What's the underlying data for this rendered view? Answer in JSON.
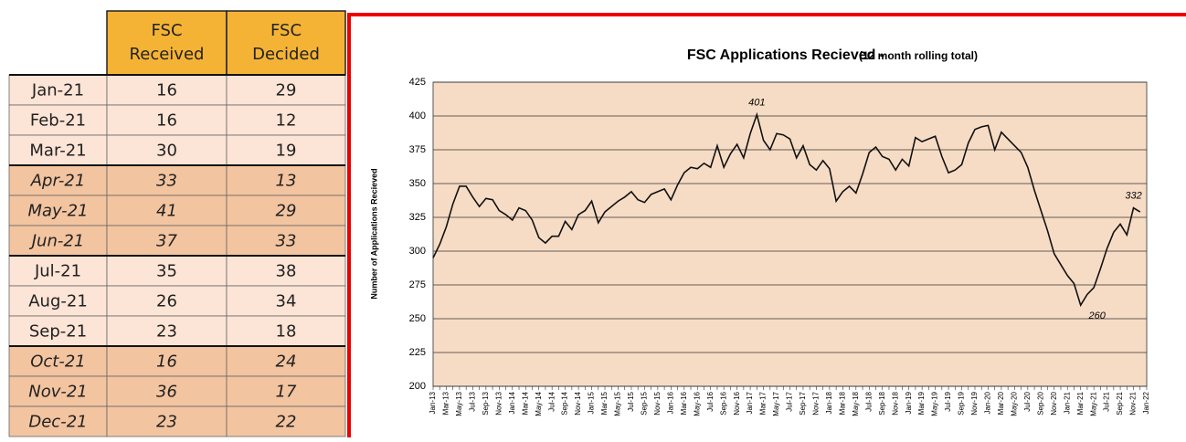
{
  "table": {
    "header": [
      "FSC Received",
      "FSC Decided"
    ],
    "rows": [
      [
        "Jan-21",
        16,
        29
      ],
      [
        "Feb-21",
        16,
        12
      ],
      [
        "Mar-21",
        30,
        19
      ],
      [
        "Apr-21",
        33,
        13
      ],
      [
        "May-21",
        41,
        29
      ],
      [
        "Jun-21",
        37,
        33
      ],
      [
        "Jul-21",
        35,
        38
      ],
      [
        "Aug-21",
        26,
        34
      ],
      [
        "Sep-21",
        23,
        18
      ],
      [
        "Oct-21",
        16,
        24
      ],
      [
        "Nov-21",
        36,
        17
      ],
      [
        "Dec-21",
        23,
        22
      ]
    ]
  },
  "chart_data": {
    "type": "line",
    "title": "FSC Applications Recieved -",
    "subtitle": "(12 month rolling total)",
    "y_label": "Number of Applications Recieved",
    "categories": [
      "Jan-13",
      null,
      "Mar-13",
      null,
      "May-13",
      null,
      "Jul-13",
      null,
      "Sep-13",
      null,
      "Nov-13",
      null,
      "Jan-14",
      null,
      "Mar-14",
      null,
      "May-14",
      null,
      "Jul-14",
      null,
      "Sep-14",
      null,
      "Nov-14",
      null,
      "Jan-15",
      null,
      "Mar-15",
      null,
      "May-15",
      null,
      "Jul-15",
      null,
      "Sep-15",
      null,
      "Nov-15",
      null,
      "Jan-16",
      null,
      "Mar-16",
      null,
      "May-16",
      null,
      "Jul-16",
      null,
      "Sep-16",
      null,
      "Nov-16",
      null,
      "Jan-17",
      null,
      "Mar-17",
      null,
      "May-17",
      null,
      "Jul-17",
      null,
      "Sep-17",
      null,
      "Nov-17",
      null,
      "Jan-18",
      null,
      "Mar-18",
      null,
      "May-18",
      null,
      "Jul-18",
      null,
      "Sep-18",
      null,
      "Nov-18",
      null,
      "Jan-19",
      null,
      "Mar-19",
      null,
      "May-19",
      null,
      "Jul-19",
      null,
      "Sep-19",
      null,
      "Nov-19",
      null,
      "Jan-20",
      null,
      "Mar-20",
      null,
      "May-20",
      null,
      "Jul-20",
      null,
      "Sep-20",
      null,
      "Nov-20",
      null,
      "Jan-21",
      null,
      "Mar-21",
      null,
      "May-21",
      null,
      "Jul-21",
      null,
      "Sep-21",
      null,
      "Nov-21",
      null,
      "Jan-22"
    ],
    "series": [
      {
        "name": "FSC Applications Recieved",
        "color": "#111111",
        "values": [
          295,
          305,
          318,
          335,
          348,
          348,
          340,
          333,
          339,
          338,
          330,
          327,
          323,
          332,
          330,
          323,
          310,
          306,
          311,
          311,
          322,
          316,
          327,
          330,
          337,
          321,
          329,
          333,
          337,
          340,
          344,
          338,
          336,
          342,
          344,
          346,
          338,
          349,
          358,
          362,
          361,
          365,
          362,
          378,
          362,
          372,
          379,
          369,
          387,
          401,
          382,
          375,
          387,
          386,
          383,
          369,
          378,
          364,
          360,
          367,
          361,
          337,
          344,
          348,
          343,
          357,
          373,
          377,
          370,
          368,
          360,
          368,
          363,
          384,
          381,
          383,
          385,
          370,
          358,
          360,
          364,
          380,
          390,
          392,
          393,
          375,
          388,
          383,
          378,
          373,
          362,
          345,
          330,
          315,
          298,
          290,
          282,
          276,
          260,
          268,
          273,
          287,
          302,
          314,
          320,
          312,
          332,
          329,
          null
        ],
        "value_labels": [
          null,
          null,
          null,
          null,
          null,
          null,
          null,
          null,
          null,
          null,
          null,
          null,
          null,
          null,
          null,
          null,
          null,
          null,
          null,
          null,
          null,
          null,
          null,
          null,
          null,
          null,
          null,
          null,
          null,
          null,
          null,
          null,
          null,
          null,
          null,
          null,
          null,
          null,
          null,
          null,
          null,
          null,
          null,
          null,
          null,
          null,
          null,
          null,
          null,
          "401",
          null,
          null,
          null,
          null,
          null,
          null,
          null,
          null,
          null,
          null,
          null,
          null,
          null,
          null,
          null,
          null,
          null,
          null,
          null,
          null,
          null,
          null,
          null,
          null,
          null,
          null,
          null,
          null,
          null,
          null,
          null,
          null,
          null,
          null,
          null,
          null,
          null,
          null,
          null,
          null,
          null,
          null,
          null,
          null,
          null,
          null,
          null,
          null,
          "260",
          null,
          null,
          null,
          null,
          null,
          null,
          null,
          "332",
          null,
          null
        ]
      }
    ],
    "ylim": [
      200,
      425
    ],
    "yticks": [
      200,
      225,
      250,
      275,
      300,
      325,
      350,
      375,
      400,
      425
    ],
    "grid": true,
    "background": "#f7dcc5"
  }
}
